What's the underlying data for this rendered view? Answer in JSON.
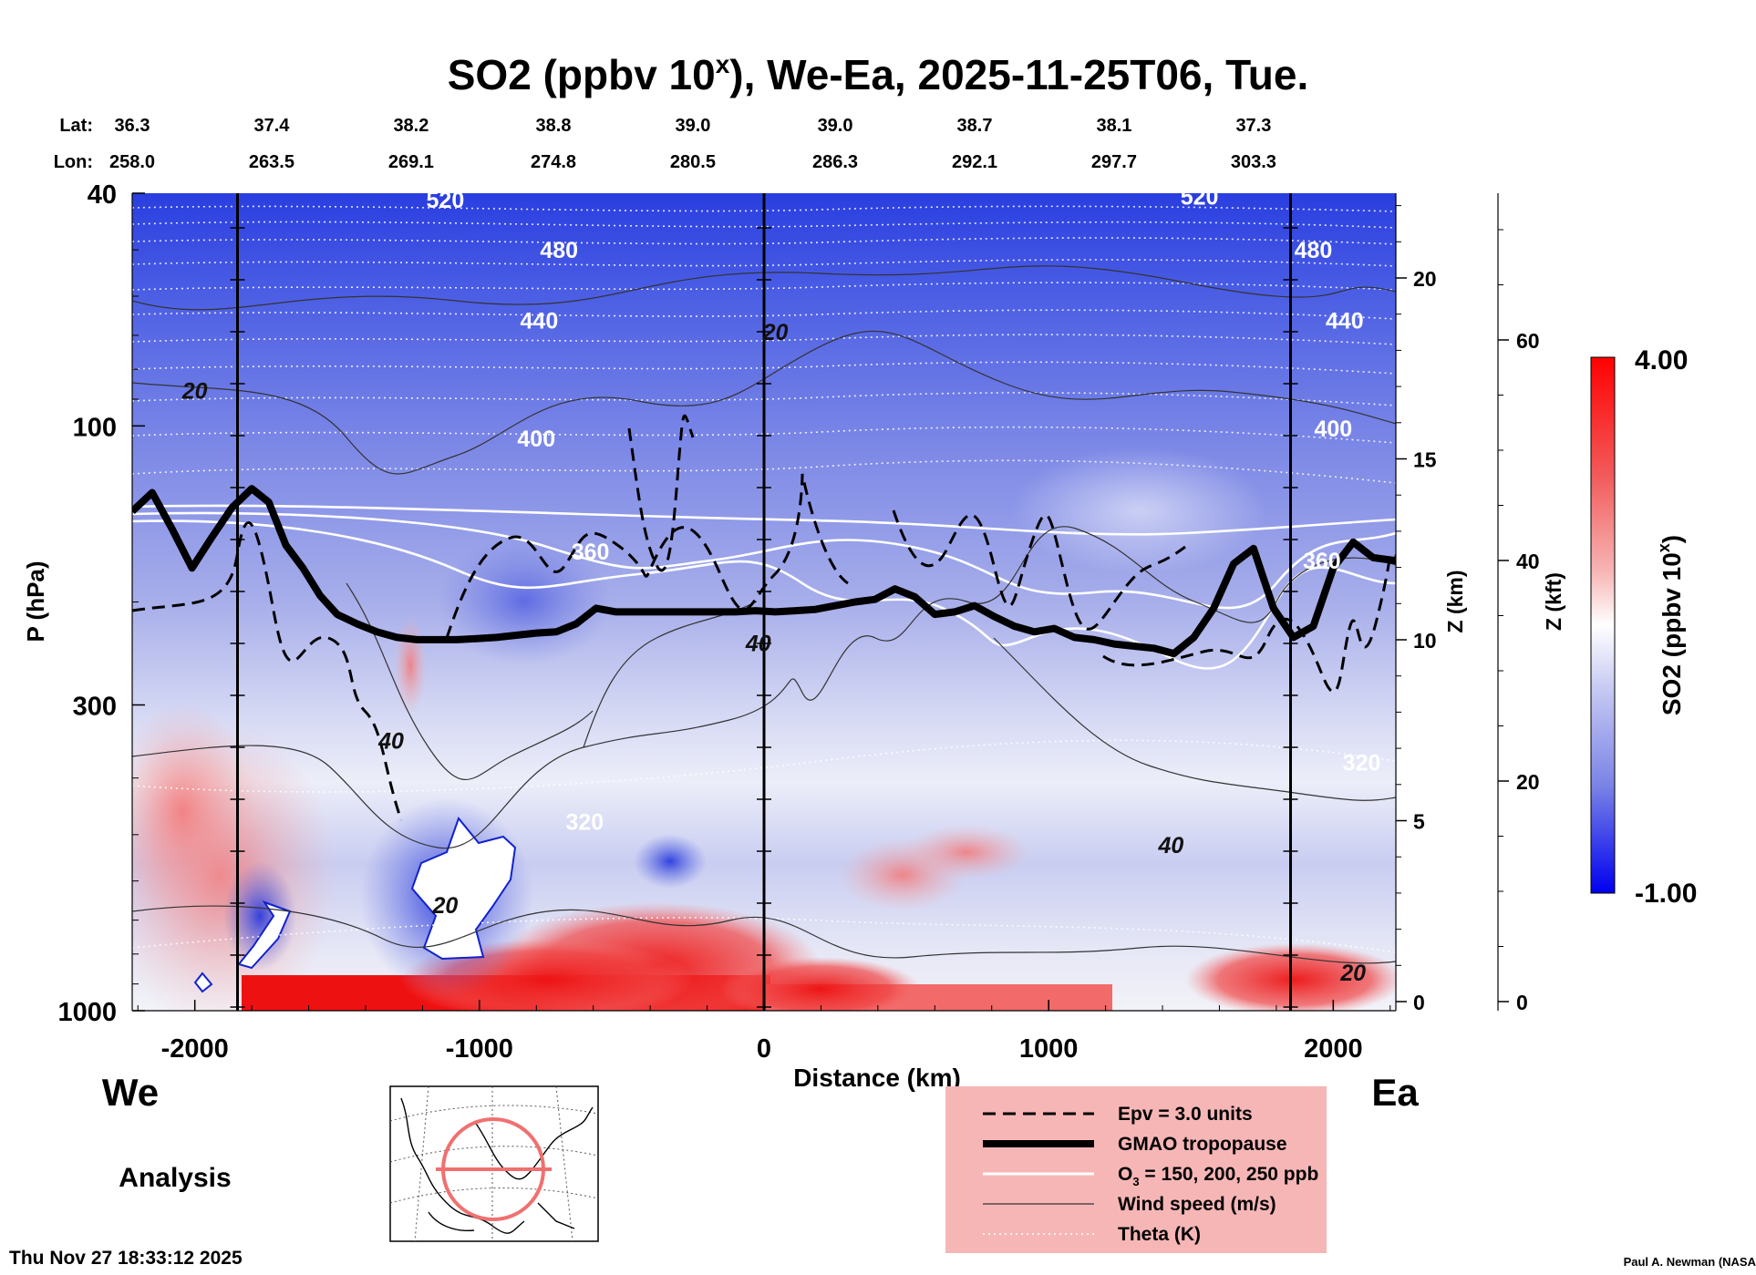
{
  "header": {
    "title_main": "SO2 (ppbv 10",
    "title_sup": "x",
    "title_rest": "), We-Ea, 2025-11-25T06, Tue."
  },
  "coords": {
    "lat_label": "Lat:",
    "lon_label": "Lon:",
    "columns": [
      {
        "lat": "36.3",
        "lon": "258.0",
        "dist": -2220
      },
      {
        "lat": "37.4",
        "lon": "263.5",
        "dist": -1730
      },
      {
        "lat": "38.2",
        "lon": "269.1",
        "dist": -1240
      },
      {
        "lat": "38.8",
        "lon": "274.8",
        "dist": -740
      },
      {
        "lat": "39.0",
        "lon": "280.5",
        "dist": -250
      },
      {
        "lat": "39.0",
        "lon": "286.3",
        "dist": 250
      },
      {
        "lat": "38.7",
        "lon": "292.1",
        "dist": 740
      },
      {
        "lat": "38.1",
        "lon": "297.7",
        "dist": 1230
      },
      {
        "lat": "37.3",
        "lon": "303.3",
        "dist": 1720
      }
    ]
  },
  "axes": {
    "x_label": "Distance (km)",
    "y_label": "P (hPa)",
    "z_km_label": "Z (km)",
    "z_kft_label": "Z (kft)",
    "x_ticks": [
      {
        "value": -2000,
        "label": "-2000"
      },
      {
        "value": -1000,
        "label": "-1000"
      },
      {
        "value": 0,
        "label": "0"
      },
      {
        "value": 1000,
        "label": "1000"
      },
      {
        "value": 2000,
        "label": "2000"
      }
    ],
    "p_ticks": [
      {
        "value": 40,
        "label": "40"
      },
      {
        "value": 100,
        "label": "100"
      },
      {
        "value": 300,
        "label": "300"
      },
      {
        "value": 1000,
        "label": "1000"
      }
    ],
    "z_km_ticks": [
      {
        "value": 0,
        "label": "0"
      },
      {
        "value": 5,
        "label": "5"
      },
      {
        "value": 10,
        "label": "10"
      },
      {
        "value": 15,
        "label": "15"
      },
      {
        "value": 20,
        "label": "20"
      }
    ],
    "z_kft_ticks": [
      {
        "value": 0,
        "label": "0"
      },
      {
        "value": 20,
        "label": "20"
      },
      {
        "value": 40,
        "label": "40"
      },
      {
        "value": 60,
        "label": "60"
      }
    ]
  },
  "colorbar": {
    "max_label": "4.00",
    "min_label": "-1.00",
    "title_main": "SO2 (ppbv 10",
    "title_sup": "x",
    "title_rest": ")"
  },
  "labels": {
    "west": "We",
    "east": "Ea",
    "analysis": "Analysis",
    "timestamp": "Thu Nov 27 18:33:12 2025",
    "credit": "Paul A. Newman (NASA"
  },
  "legend": {
    "epv": "Epv = 3.0 units",
    "tropopause": "GMAO tropopause",
    "ozone_main": "O",
    "ozone_sub": "3",
    "ozone_rest": " = 150, 200, 250 ppb",
    "wind": "Wind speed (m/s)",
    "theta": "Theta (K)"
  },
  "theta_labels": [
    {
      "text": "520",
      "x": -1120,
      "p": 41
    },
    {
      "text": "520",
      "x": 1530,
      "p": 40.5
    },
    {
      "text": "480",
      "x": -720,
      "p": 50
    },
    {
      "text": "480",
      "x": 1930,
      "p": 50
    },
    {
      "text": "440",
      "x": -790,
      "p": 66
    },
    {
      "text": "440",
      "x": 2040,
      "p": 66
    },
    {
      "text": "400",
      "x": -800,
      "p": 105
    },
    {
      "text": "400",
      "x": 2000,
      "p": 101
    },
    {
      "text": "360",
      "x": -610,
      "p": 164
    },
    {
      "text": "360",
      "x": 1960,
      "p": 170
    },
    {
      "text": "320",
      "x": -630,
      "p": 475
    },
    {
      "text": "320",
      "x": 2100,
      "p": 376
    }
  ],
  "wind_labels": [
    {
      "text": "20",
      "x": -2000,
      "p": 87
    },
    {
      "text": "20",
      "x": 40,
      "p": 69
    },
    {
      "text": "40",
      "x": -20,
      "p": 235
    },
    {
      "text": "40",
      "x": -1310,
      "p": 345
    },
    {
      "text": "40",
      "x": 1430,
      "p": 520
    },
    {
      "text": "20",
      "x": -1120,
      "p": 660
    },
    {
      "text": "20",
      "x": 2070,
      "p": 860
    }
  ],
  "chart_data": {
    "type": "heatmap",
    "title": "SO2 (ppbv 10^x), We-Ea, 2025-11-25T06, Tue.",
    "xlabel": "Distance (km)",
    "ylabel": "P (hPa)",
    "xlim": [
      -2220,
      2220
    ],
    "ylim": [
      40,
      1000
    ],
    "y_scale": "log",
    "colorbar_range": [
      -1.0,
      4.0
    ],
    "vertical_markers_km": [
      -1850,
      0,
      1850
    ],
    "tropopause": {
      "x": [
        -2220,
        -2150,
        -2080,
        -2010,
        -1940,
        -1870,
        -1800,
        -1740,
        -1680,
        -1620,
        -1560,
        -1500,
        -1430,
        -1360,
        -1290,
        -1220,
        -1150,
        -1080,
        -1010,
        -940,
        -870,
        -800,
        -730,
        -660,
        -590,
        -520,
        -450,
        -380,
        -310,
        -240,
        -170,
        -100,
        -30,
        40,
        110,
        180,
        250,
        320,
        390,
        460,
        530,
        600,
        670,
        740,
        810,
        880,
        950,
        1020,
        1090,
        1160,
        1230,
        1300,
        1370,
        1440,
        1510,
        1580,
        1650,
        1720,
        1790,
        1860,
        1930,
        2000,
        2070,
        2140,
        2220
      ],
      "p": [
        140,
        130,
        150,
        175,
        155,
        138,
        128,
        135,
        160,
        175,
        195,
        210,
        218,
        225,
        230,
        232,
        232,
        232,
        231,
        230,
        228,
        226,
        225,
        218,
        205,
        208,
        208,
        208,
        208,
        208,
        208,
        208,
        207,
        208,
        207,
        206,
        203,
        200,
        198,
        190,
        196,
        210,
        208,
        203,
        212,
        220,
        225,
        222,
        230,
        232,
        236,
        238,
        240,
        245,
        230,
        205,
        172,
        162,
        205,
        230,
        220,
        175,
        158,
        168,
        170
      ]
    },
    "wind_speed_ms": "contours 20, 40 (labels listed in wind_labels)",
    "theta_K": "isentropes 320-520 (labels listed in theta_labels)",
    "epv_contour": "3.0 units",
    "ozone_contours_ppb": [
      150,
      200,
      250
    ]
  }
}
